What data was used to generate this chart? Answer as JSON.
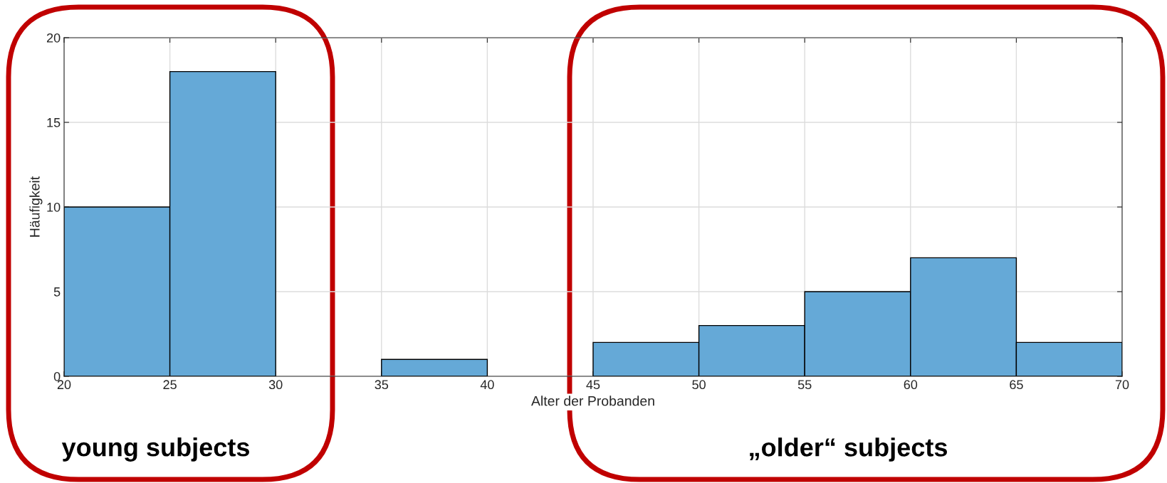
{
  "chart_data": {
    "type": "histogram",
    "bins": [
      20,
      25,
      30,
      35,
      40,
      45,
      50,
      55,
      60,
      65,
      70
    ],
    "values": [
      10,
      18,
      0,
      1,
      0,
      2,
      3,
      5,
      7,
      2
    ],
    "color": "#65a9d7",
    "xlabel": "Alter der Probanden",
    "ylabel": "Häufigkeit",
    "xlim": [
      20,
      70
    ],
    "xticks": [
      20,
      25,
      30,
      35,
      40,
      45,
      50,
      55,
      60,
      65,
      70
    ],
    "ylim": [
      0,
      20
    ],
    "yticks": [
      0,
      5,
      10,
      15,
      20
    ],
    "grid": true,
    "annotations": [
      "young subjects",
      "„older“ subjects"
    ]
  }
}
